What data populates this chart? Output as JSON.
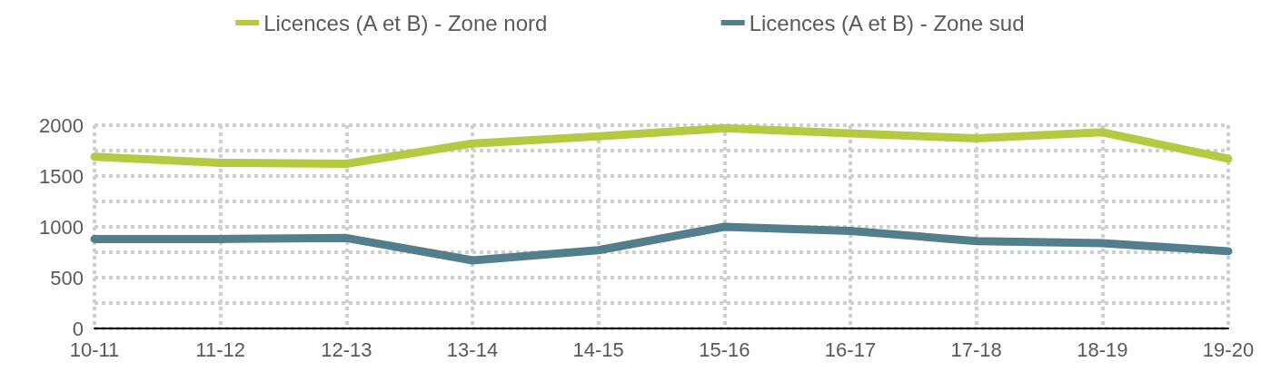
{
  "chart_data": {
    "type": "line",
    "categories": [
      "10-11",
      "11-12",
      "12-13",
      "13-14",
      "14-15",
      "15-16",
      "16-17",
      "17-18",
      "18-19",
      "19-20"
    ],
    "series": [
      {
        "name": "Licences (A et B) - Zone nord",
        "color": "#b5c943",
        "values": [
          1690,
          1630,
          1620,
          1820,
          1890,
          1970,
          1920,
          1870,
          1930,
          1670
        ]
      },
      {
        "name": "Licences (A et B) - Zone sud",
        "color": "#537f8c",
        "values": [
          880,
          880,
          890,
          670,
          770,
          1000,
          960,
          860,
          840,
          760
        ]
      }
    ],
    "ylim": [
      0,
      2000
    ],
    "yticks": [
      0,
      500,
      1000,
      1500,
      2000
    ],
    "grid": true,
    "legend": "top",
    "marker": "none",
    "line_style": "solid"
  }
}
